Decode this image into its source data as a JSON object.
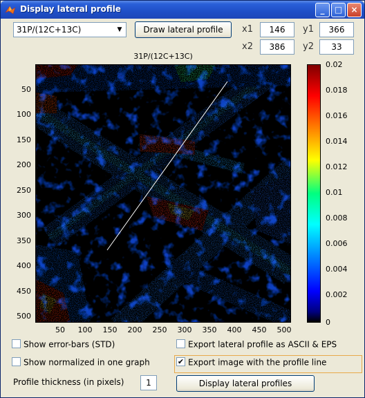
{
  "window": {
    "title": "Display lateral profile"
  },
  "controls": {
    "ratio_select": "31P/(12C+13C)",
    "draw_button": "Draw lateral profile",
    "x1_label": "x1",
    "x1_value": "146",
    "y1_label": "y1",
    "y1_value": "366",
    "x2_label": "x2",
    "x2_value": "386",
    "y2_label": "y2",
    "y2_value": "33"
  },
  "chart_data": {
    "type": "heatmap",
    "title": "31P/(12C+13C)",
    "xlabel": "",
    "ylabel": "",
    "x_ticks": [
      "50",
      "100",
      "150",
      "200",
      "250",
      "300",
      "350",
      "400",
      "450",
      "500"
    ],
    "y_ticks": [
      "50",
      "100",
      "150",
      "200",
      "250",
      "300",
      "350",
      "400",
      "450",
      "500"
    ],
    "colorbar_ticks": [
      "0.02",
      "0.018",
      "0.016",
      "0.014",
      "0.012",
      "0.01",
      "0.008",
      "0.006",
      "0.004",
      "0.002",
      "0"
    ],
    "colorbar_range": [
      0,
      0.02
    ],
    "colormap": "jet",
    "profile_line": {
      "x1": 146,
      "y1": 366,
      "x2": 386,
      "y2": 33
    },
    "axis_range": {
      "x": [
        0,
        512
      ],
      "y": [
        0,
        512
      ]
    }
  },
  "options": {
    "error_bars_label": "Show error-bars (STD)",
    "error_bars_checked": false,
    "normalized_label": "Show normalized in one graph",
    "normalized_checked": false,
    "export_ascii_label": "Export lateral profile as ASCII & EPS",
    "export_ascii_checked": false,
    "export_image_label": "Export image with the profile line",
    "export_image_checked": true,
    "thickness_label": "Profile thickness (in pixels)",
    "thickness_value": "1",
    "display_button": "Display lateral profiles"
  }
}
